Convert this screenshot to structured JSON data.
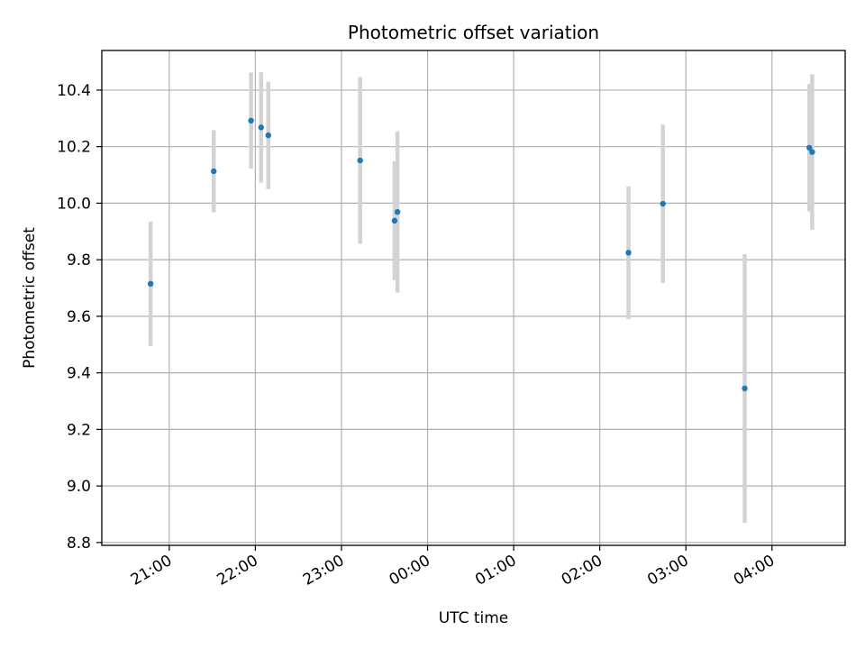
{
  "chart_data": {
    "type": "scatter",
    "title": "Photometric offset variation",
    "xlabel": "UTC time",
    "ylabel": "Photometric offset",
    "x_tick_labels": [
      "21:00",
      "22:00",
      "23:00",
      "00:00",
      "01:00",
      "02:00",
      "03:00",
      "04:00"
    ],
    "y_tick_labels": [
      "8.8",
      "9.0",
      "9.2",
      "9.4",
      "9.6",
      "9.8",
      "10.0",
      "10.2",
      "10.4"
    ],
    "y_ticks": [
      8.8,
      9.0,
      9.2,
      9.4,
      9.6,
      9.8,
      10.0,
      10.2,
      10.4
    ],
    "ylim": [
      8.79,
      10.54
    ],
    "xlim": [
      "20:13",
      "28:51"
    ],
    "grid": true,
    "x": [
      "20:47",
      "21:31",
      "21:57",
      "22:04",
      "22:09",
      "23:13",
      "23:37",
      "23:39",
      "26:20",
      "26:44",
      "27:41",
      "28:26",
      "28:28"
    ],
    "y": [
      9.715,
      10.113,
      10.292,
      10.268,
      10.24,
      10.151,
      9.938,
      9.969,
      9.825,
      9.998,
      9.345,
      10.196,
      10.181
    ],
    "yerr": [
      0.22,
      0.145,
      0.17,
      0.195,
      0.19,
      0.295,
      0.21,
      0.285,
      0.235,
      0.28,
      0.475,
      0.225,
      0.275
    ],
    "marker_color": "#1f77b4",
    "errorbar_color": "#d3d3d3"
  }
}
